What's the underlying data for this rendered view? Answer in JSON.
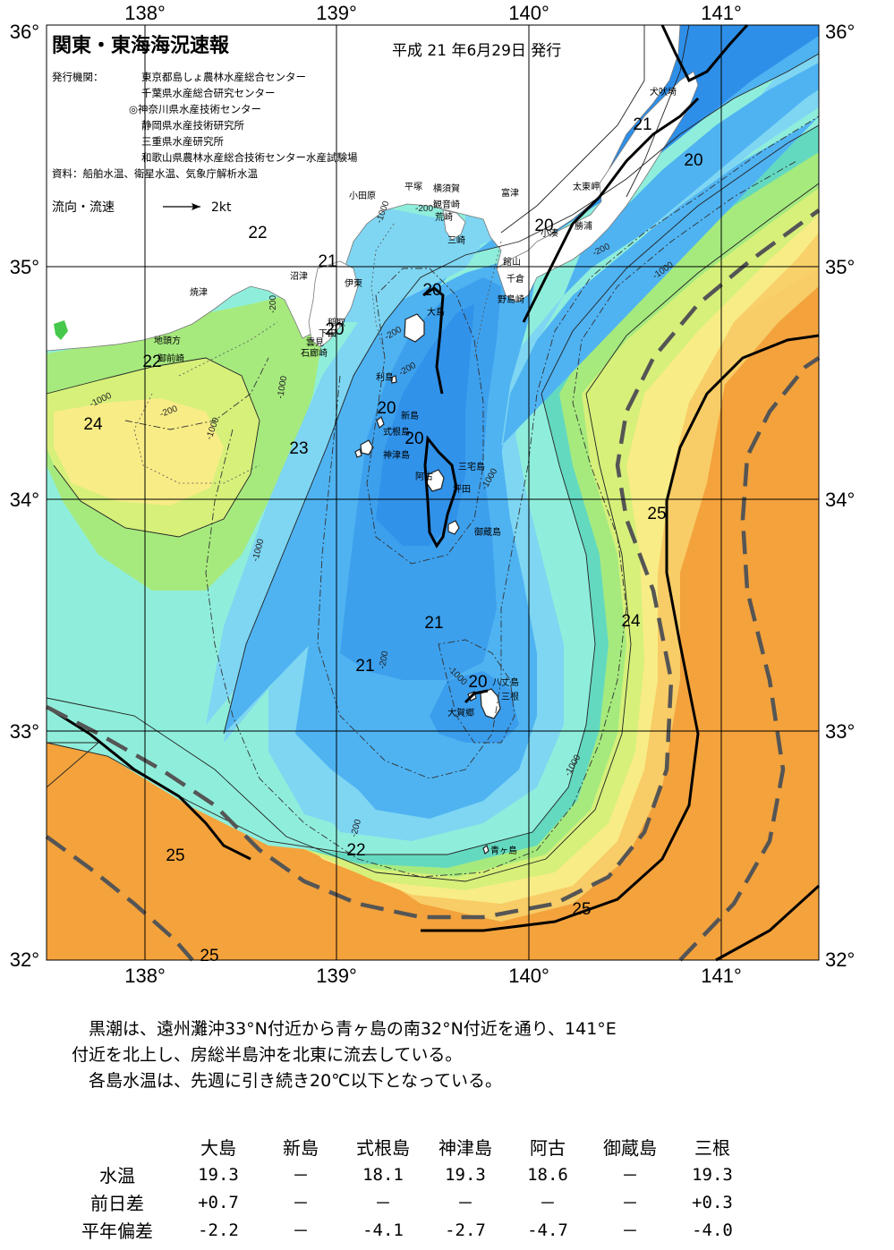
{
  "map": {
    "title": "関東・東海海況速報",
    "date": "平成 21 年6月29日 発行",
    "issuer_label": "発行機関：",
    "issuers": [
      "東京都島しょ農林水産総合センター",
      "千葉県水産総合研究センター",
      "◎神奈川県水産技術センター",
      "静岡県水産技術研究所",
      "三重県水産研究所",
      "和歌山県農林水産総合技術センター水産試験場"
    ],
    "sources": "資料：船舶水温、衛星水温、気象庁解析水温",
    "flow_label": "流向・流速",
    "flow_scale": "2kt",
    "lon_labels": [
      "138°",
      "139°",
      "140°",
      "141°"
    ],
    "lat_labels": [
      "36°",
      "35°",
      "34°",
      "33°",
      "32°"
    ],
    "isotherm_labels": [
      "21",
      "20",
      "22",
      "21",
      "20",
      "20",
      "22",
      "24",
      "23",
      "20",
      "20",
      "25",
      "24",
      "21",
      "21",
      "20",
      "22",
      "25",
      "25",
      "25",
      "20"
    ],
    "depth_labels": [
      "-1000",
      "-200",
      "-200",
      "-200",
      "-1000",
      "-200",
      "-1000",
      "-200",
      "-1000",
      "-1000",
      "-200",
      "-1000",
      "-1000",
      "-1000",
      "-200",
      "-1000",
      "-200"
    ],
    "places": {
      "inubosaki": "犬吠埼",
      "taitomisaki": "太東岬",
      "katsuura": "勝浦",
      "kominato": "小湊",
      "futtsu": "富津",
      "yokosuka": "横須賀",
      "hiratsuka": "平塚",
      "odawara": "小田原",
      "kannonzaki": "観音崎",
      "arasaki": "荒崎",
      "misaki": "三崎",
      "tateyama": "館山",
      "chikura": "千倉",
      "nojimazaki": "野島崎",
      "numazu": "沼津",
      "ito": "伊東",
      "yaizu": "焼津",
      "inatori": "稲取",
      "shimoda": "下田",
      "mera": "雲見",
      "irouzaki": "石廊崎",
      "jitoukata": "地頭方",
      "omaezaki": "御前崎",
      "oshima": "大島",
      "toshima": "利島",
      "niijima": "新島",
      "shikinejima": "式根島",
      "kozushima": "神津島",
      "miyakejima": "三宅島",
      "ako": "阿古",
      "tsubota": "坪田",
      "mikurajima": "御蔵島",
      "yaejima": "八丈島",
      "mitsune": "三根",
      "okago": "大賀郷",
      "aogashima": "青ヶ島"
    }
  },
  "comment": [
    "　黒潮は、遠州灘沖33°N付近から青ヶ島の南32°N付近を通り、141°E",
    "付近を北上し、房総半島沖を北東に流去している。",
    "　各島水温は、先週に引き続き20℃以下となっている。"
  ],
  "table": {
    "columns": [
      "大島",
      "新島",
      "式根島",
      "神津島",
      "阿古",
      "御蔵島",
      "三根"
    ],
    "rows": [
      {
        "label": "水温",
        "values": [
          "19.3",
          "－",
          "18.1",
          "19.3",
          "18.6",
          "－",
          "19.3"
        ]
      },
      {
        "label": "前日差",
        "values": [
          "+0.7",
          "－",
          "－",
          "－",
          "－",
          "－",
          "+0.3"
        ]
      },
      {
        "label": "平年偏差",
        "values": [
          "-2.2",
          "－",
          "-4.1",
          "-2.7",
          "-4.7",
          "－",
          "-4.0"
        ]
      }
    ]
  },
  "colors": {
    "water_20": "#2e8fe9",
    "water_21": "#4fb3f2",
    "water_21_5": "#7ed6f2",
    "water_22": "#8feedb",
    "water_22_5": "#63d9c0",
    "water_23": "#a6ea7e",
    "water_23_5": "#d6f07a",
    "water_24": "#f8ec86",
    "water_24_5": "#f8d06a",
    "water_25": "#f3a23c",
    "kuroshio_axis": "#555555",
    "land": "#ffffff"
  }
}
